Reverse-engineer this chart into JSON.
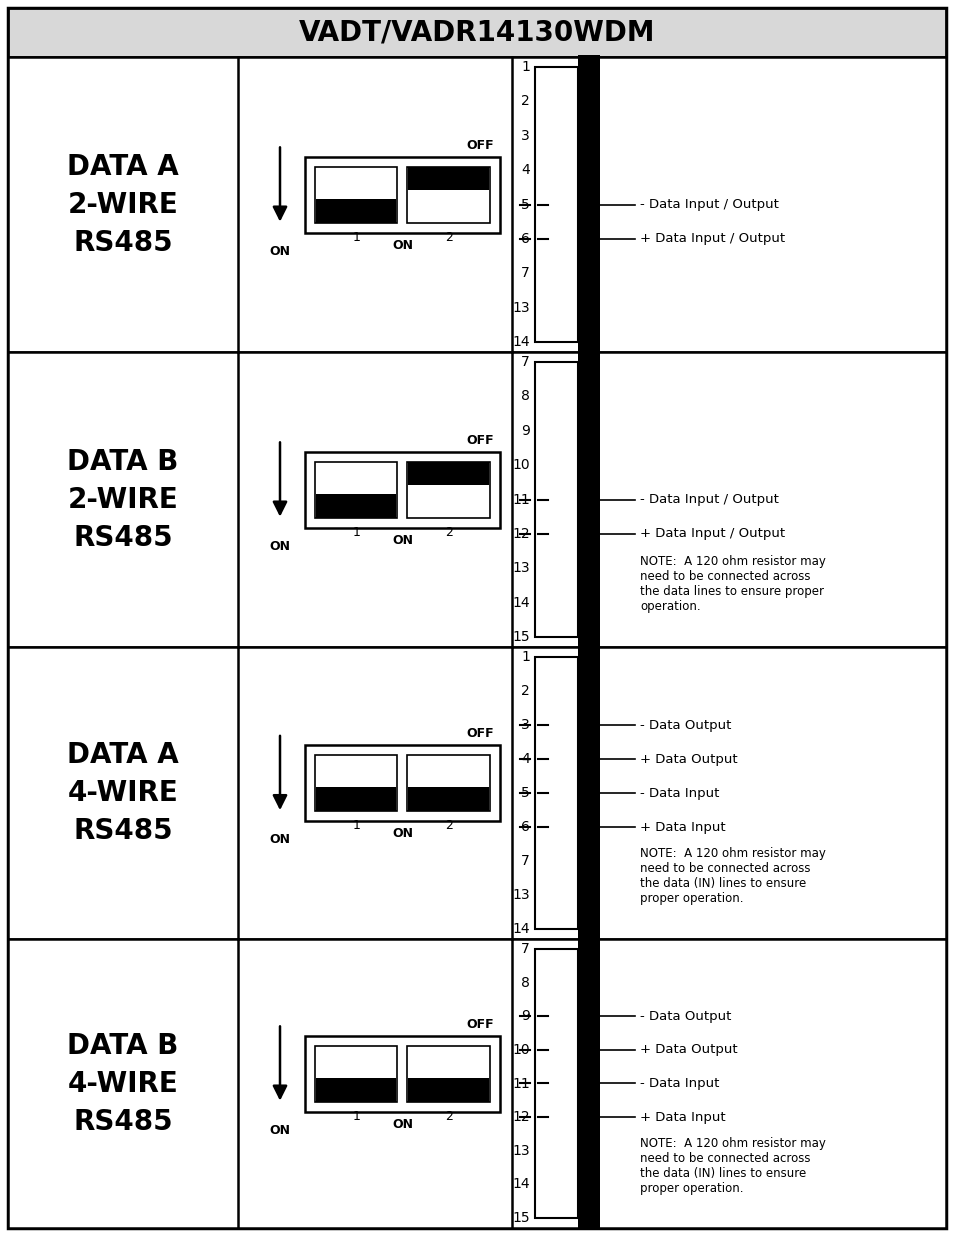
{
  "title": "VADT/VADR14130WDM",
  "rows": [
    {
      "label_lines": [
        "DATA A",
        "2-WIRE",
        "RS485"
      ],
      "is_4wire": false,
      "pin_numbers": [
        "1",
        "2",
        "3",
        "4",
        "5",
        "6",
        "7",
        "13",
        "14"
      ],
      "active_pins": [
        4,
        5
      ],
      "pin_labels": [
        "- Data Input / Output",
        "+ Data Input / Output"
      ],
      "note": ""
    },
    {
      "label_lines": [
        "DATA B",
        "2-WIRE",
        "RS485"
      ],
      "is_4wire": false,
      "pin_numbers": [
        "7",
        "8",
        "9",
        "10",
        "11",
        "12",
        "13",
        "14",
        "15"
      ],
      "active_pins": [
        4,
        5
      ],
      "pin_labels": [
        "- Data Input / Output",
        "+ Data Input / Output"
      ],
      "note": "NOTE:  A 120 ohm resistor may\nneed to be connected across\nthe data lines to ensure proper\noperation."
    },
    {
      "label_lines": [
        "DATA A",
        "4-WIRE",
        "RS485"
      ],
      "is_4wire": true,
      "pin_numbers": [
        "1",
        "2",
        "3",
        "4",
        "5",
        "6",
        "7",
        "13",
        "14"
      ],
      "active_pins": [
        2,
        3,
        4,
        5
      ],
      "pin_labels": [
        "- Data Output",
        "+ Data Output",
        "- Data Input",
        "+ Data Input"
      ],
      "note": "NOTE:  A 120 ohm resistor may\nneed to be connected across\nthe data (IN) lines to ensure\nproper operation."
    },
    {
      "label_lines": [
        "DATA B",
        "4-WIRE",
        "RS485"
      ],
      "is_4wire": true,
      "pin_numbers": [
        "7",
        "8",
        "9",
        "10",
        "11",
        "12",
        "13",
        "14",
        "15"
      ],
      "active_pins": [
        2,
        3,
        4,
        5
      ],
      "pin_labels": [
        "- Data Output",
        "+ Data Output",
        "- Data Input",
        "+ Data Input"
      ],
      "note": "NOTE:  A 120 ohm resistor may\nneed to be connected across\nthe data (IN) lines to ensure\nproper operation."
    }
  ],
  "title_fontsize": 20,
  "label_fontsize": 20,
  "pin_fontsize": 10,
  "note_fontsize": 8.5,
  "pin_label_fontsize": 9.5
}
